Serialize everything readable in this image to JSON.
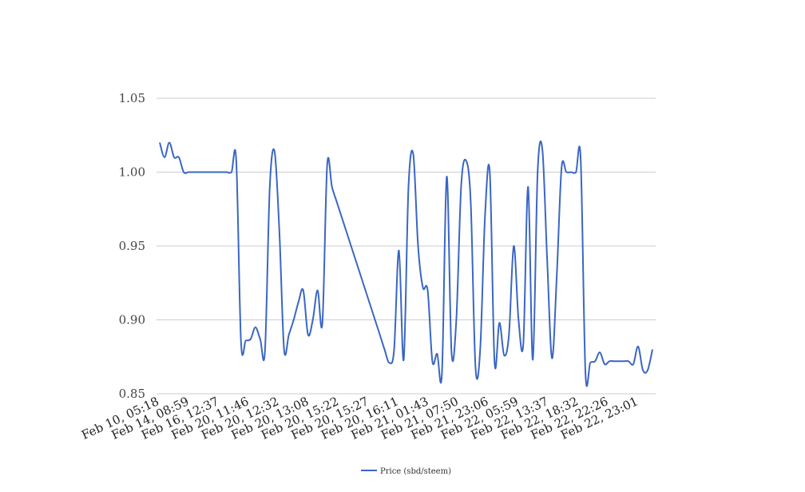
{
  "chart_data": {
    "type": "line",
    "title": "",
    "xlabel": "",
    "ylabel": "",
    "ylim": [
      0.85,
      1.05
    ],
    "yticks": [
      "0.85",
      "0.90",
      "0.95",
      "1.00",
      "1.05"
    ],
    "grid": true,
    "legend_placement": "bottom",
    "xtick_labels": [
      "Feb 10, 05:18",
      "Feb 14, 08:59",
      "Feb 16, 12:37",
      "Feb 20, 11:46",
      "Feb 20, 12:32",
      "Feb 20, 13:08",
      "Feb 20, 15:22",
      "Feb 20, 15:27",
      "Feb 20, 16:11",
      "Feb 21, 01:43",
      "Feb 21, 07:50",
      "Feb 21, 23:06",
      "Feb 22, 05:59",
      "Feb 22, 13:37",
      "Feb 22, 18:32",
      "Feb 22, 22:26",
      "Feb 22, 23:01"
    ],
    "series": [
      {
        "name": "Price (sbd/steem)",
        "color": "#3a66c4",
        "values": [
          1.02,
          1.01,
          1.02,
          1.01,
          1.01,
          1.0,
          1.0,
          1.0,
          1.0,
          1.0,
          1.0,
          1.0,
          1.0,
          1.0,
          1.0,
          1.0,
          1.008,
          0.885,
          0.886,
          0.887,
          0.895,
          0.887,
          0.879,
          0.99,
          1.014,
          0.96,
          0.88,
          0.89,
          0.9,
          0.912,
          0.92,
          0.89,
          0.9,
          0.92,
          0.898,
          1.005,
          0.99,
          0.98,
          0.97,
          0.96,
          0.95,
          0.94,
          0.93,
          0.92,
          0.91,
          0.9,
          0.89,
          0.88,
          0.871,
          0.88,
          0.947,
          0.873,
          0.99,
          1.012,
          0.95,
          0.922,
          0.92,
          0.872,
          0.877,
          0.864,
          0.997,
          0.878,
          0.9,
          0.99,
          1.008,
          0.98,
          0.868,
          0.88,
          0.97,
          1.0,
          0.871,
          0.898,
          0.876,
          0.89,
          0.95,
          0.9,
          0.884,
          0.99,
          0.873,
          1.0,
          1.015,
          0.94,
          0.874,
          0.93,
          1.003,
          1.0,
          1.0,
          1.0,
          1.009,
          0.864,
          0.871,
          0.872,
          0.878,
          0.87,
          0.872,
          0.872,
          0.872,
          0.872,
          0.872,
          0.87,
          0.882,
          0.866,
          0.866,
          0.88
        ]
      }
    ]
  }
}
